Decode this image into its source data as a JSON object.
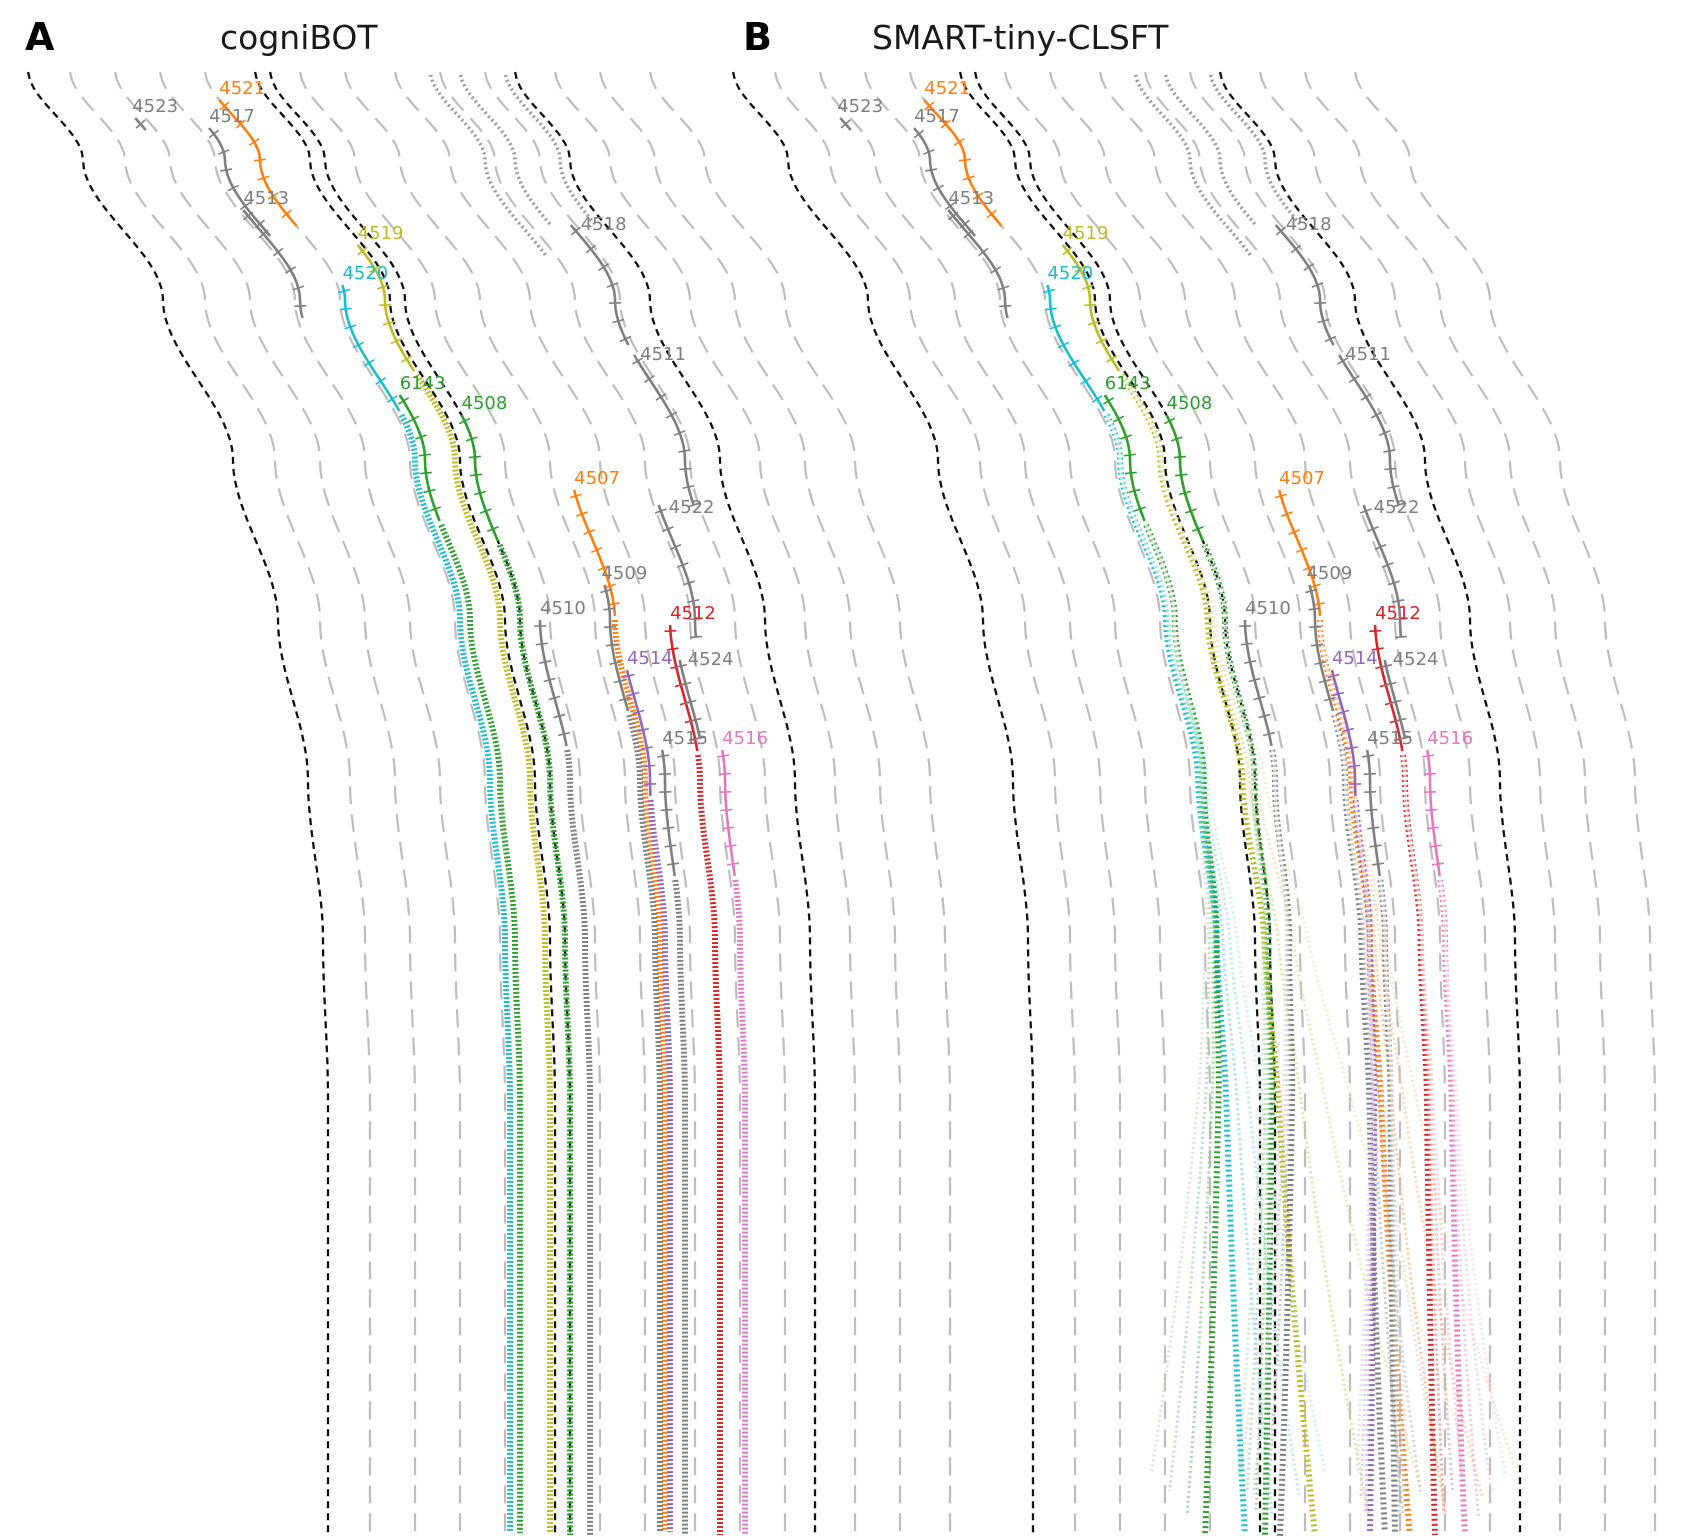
{
  "figure": {
    "panels": [
      {
        "letter": "A",
        "title": "cogniBOT",
        "agents": [
          {
            "id": "4523",
            "color": "#7f7f7f"
          },
          {
            "id": "4517",
            "color": "#7f7f7f"
          },
          {
            "id": "4521",
            "color": "#ff7f0e"
          },
          {
            "id": "4513",
            "color": "#7f7f7f"
          },
          {
            "id": "4519",
            "color": "#bcbd22"
          },
          {
            "id": "4520",
            "color": "#17becf"
          },
          {
            "id": "6143",
            "color": "#2ca02c"
          },
          {
            "id": "4508",
            "color": "#2ca02c"
          },
          {
            "id": "4507",
            "color": "#ff7f0e"
          },
          {
            "id": "4509",
            "color": "#7f7f7f"
          },
          {
            "id": "4510",
            "color": "#7f7f7f"
          },
          {
            "id": "4512",
            "color": "#d62728"
          },
          {
            "id": "4514",
            "color": "#9467bd"
          },
          {
            "id": "4515",
            "color": "#7f7f7f"
          },
          {
            "id": "4516",
            "color": "#e377c2"
          },
          {
            "id": "4518",
            "color": "#7f7f7f"
          },
          {
            "id": "4511",
            "color": "#7f7f7f"
          },
          {
            "id": "4522",
            "color": "#7f7f7f"
          },
          {
            "id": "4524",
            "color": "#7f7f7f"
          }
        ]
      },
      {
        "letter": "B",
        "title": "SMART-tiny-CLSFT",
        "agents": [
          {
            "id": "4523",
            "color": "#7f7f7f"
          },
          {
            "id": "4517",
            "color": "#7f7f7f"
          },
          {
            "id": "4521",
            "color": "#ff7f0e"
          },
          {
            "id": "4513",
            "color": "#7f7f7f"
          },
          {
            "id": "4519",
            "color": "#bcbd22"
          },
          {
            "id": "4520",
            "color": "#17becf"
          },
          {
            "id": "6143",
            "color": "#2ca02c"
          },
          {
            "id": "4508",
            "color": "#2ca02c"
          },
          {
            "id": "4507",
            "color": "#ff7f0e"
          },
          {
            "id": "4509",
            "color": "#7f7f7f"
          },
          {
            "id": "4510",
            "color": "#7f7f7f"
          },
          {
            "id": "4512",
            "color": "#d62728"
          },
          {
            "id": "4514",
            "color": "#9467bd"
          },
          {
            "id": "4515",
            "color": "#7f7f7f"
          },
          {
            "id": "4516",
            "color": "#e377c2"
          },
          {
            "id": "4518",
            "color": "#7f7f7f"
          },
          {
            "id": "4511",
            "color": "#7f7f7f"
          },
          {
            "id": "4522",
            "color": "#7f7f7f"
          },
          {
            "id": "4524",
            "color": "#7f7f7f"
          }
        ]
      }
    ]
  }
}
